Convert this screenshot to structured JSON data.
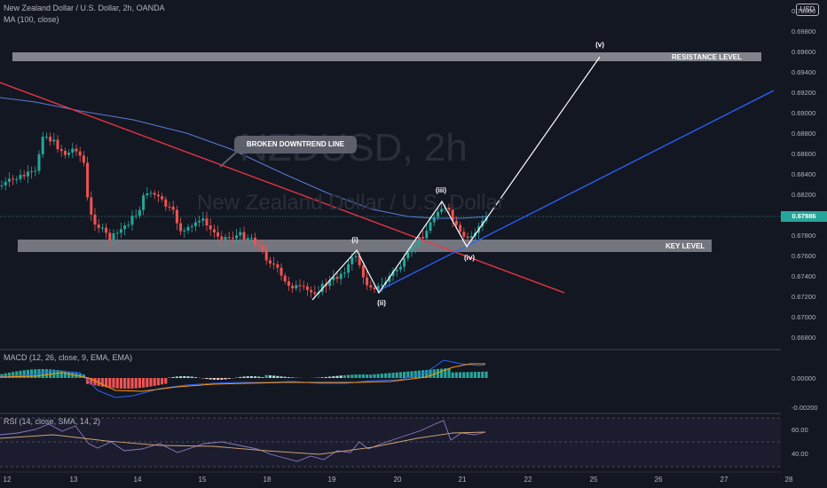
{
  "header": {
    "symbol_line": "New Zealand Dollar / U.S. Dollar, 2h, OANDA",
    "ma_line": "MA (100, close)"
  },
  "watermark": {
    "ticker": "NZDUSD, 2h",
    "name": "New Zealand Dollar / U.S. Dollar"
  },
  "price_axis": {
    "currency": "USD",
    "ticks": [
      "0.70000",
      "0.69800",
      "0.69600",
      "0.69400",
      "0.69200",
      "0.69000",
      "0.68800",
      "0.68600",
      "0.68400",
      "0.68200",
      "0.67800",
      "0.67600",
      "0.67400",
      "0.67200",
      "0.67000",
      "0.66800"
    ],
    "current_price": "0.67986"
  },
  "time_axis": {
    "labels": [
      "12",
      "13",
      "14",
      "15",
      "18",
      "19",
      "20",
      "21",
      "22",
      "25",
      "26",
      "27",
      "28"
    ]
  },
  "annotations": {
    "resistance": "RESISTANCE LEVEL",
    "key_level": "KEY LEVEL",
    "broken_trendline": "BROKEN DOWNTREND LINE",
    "waves": [
      "(i)",
      "(ii)",
      "(iii)",
      "(iv)",
      "(v)"
    ]
  },
  "macd": {
    "label": "MACD (12, 26, close, 9, EMA, EMA)",
    "ticks": [
      "0.00000",
      "-0.00200"
    ]
  },
  "rsi": {
    "label": "RSI (14, close, SMA, 14, 2)",
    "ticks": [
      "60.00",
      "40.00"
    ]
  },
  "colors": {
    "bull": "#26a69a",
    "bear": "#ef5350",
    "ma": "#2962ff",
    "downtrend": "#f23645",
    "uptrend": "#2962ff",
    "rsi_line": "#7e57c2"
  }
}
